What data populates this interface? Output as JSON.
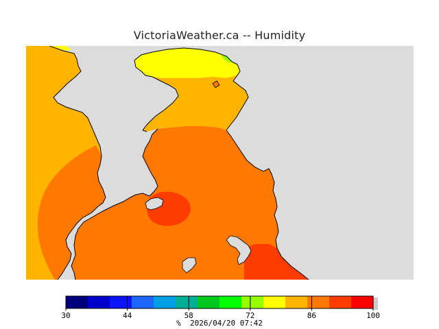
{
  "title": "VictoriaWeather.ca -- Humidity",
  "legend": {
    "tick_values": [
      "30",
      "44",
      "58",
      "72",
      "86",
      "100"
    ],
    "unit": "%",
    "timestamp": "2026/04/20 07:42",
    "min": 30,
    "max": 100,
    "bands": [
      {
        "from": 30,
        "to": 35,
        "color": "#00007d"
      },
      {
        "from": 35,
        "to": 40,
        "color": "#0000cd"
      },
      {
        "from": 40,
        "to": 45,
        "color": "#0a14ff"
      },
      {
        "from": 45,
        "to": 50,
        "color": "#1e64ff"
      },
      {
        "from": 50,
        "to": 55,
        "color": "#00a0e6"
      },
      {
        "from": 55,
        "to": 60,
        "color": "#00af96"
      },
      {
        "from": 60,
        "to": 65,
        "color": "#00c81e"
      },
      {
        "from": 65,
        "to": 70,
        "color": "#00ff00"
      },
      {
        "from": 70,
        "to": 75,
        "color": "#96ff00"
      },
      {
        "from": 75,
        "to": 80,
        "color": "#ffff00"
      },
      {
        "from": 80,
        "to": 85,
        "color": "#ffb400"
      },
      {
        "from": 85,
        "to": 90,
        "color": "#ff7800"
      },
      {
        "from": 90,
        "to": 95,
        "color": "#ff3c00"
      },
      {
        "from": 95,
        "to": 100,
        "color": "#ff0000"
      }
    ]
  },
  "colors": {
    "water": "#dcdcdc",
    "humidity_80_85": "#ffb400",
    "humidity_85_90": "#ff7800",
    "humidity_90_95": "#ff3c00",
    "humidity_75_80": "#ffff00",
    "humidity_70_75": "#96ff00",
    "coastline": "#000000"
  }
}
